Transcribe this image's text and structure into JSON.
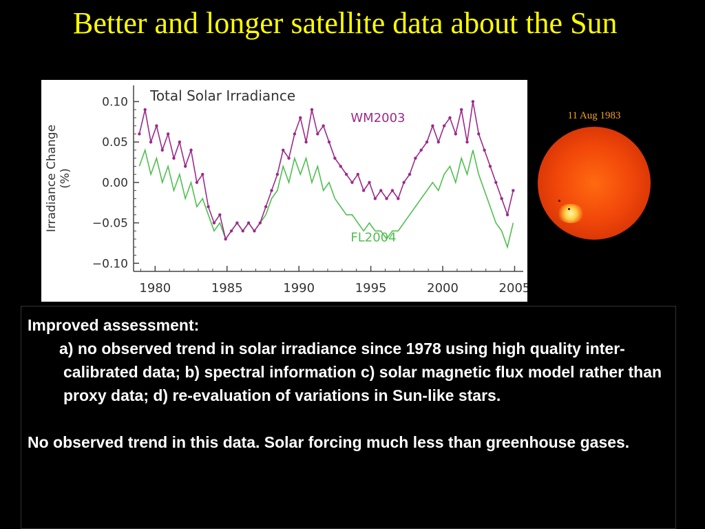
{
  "slide": {
    "title": "Better and longer satellite data about the Sun"
  },
  "colors": {
    "title": "#ffff00",
    "wm2003": "#9b2a8a",
    "fl2004": "#4fbf4f",
    "background": "#000000"
  },
  "sun_image": {
    "date_label": "11 Aug 1983"
  },
  "text_box": {
    "heading": "Improved assessment:",
    "item_a": "a) no observed trend in solar irradiance since 1978 using high quality inter-calibrated data; b) spectral information c) solar magnetic flux model rather than proxy data; d) re-evaluation of variations in Sun-like stars.",
    "conclusion": "No observed trend in this data.  Solar forcing much less than greenhouse gases."
  },
  "chart_data": {
    "type": "line",
    "title": "Total Solar Irradiance",
    "xlabel": "",
    "ylabel": "Irradiance Change (%)",
    "xlim": [
      1978.5,
      2005.6
    ],
    "ylim": [
      -0.11,
      0.12
    ],
    "x_ticks": [
      1980,
      1985,
      1990,
      1995,
      2000,
      2005
    ],
    "x_tick_labels": [
      "1980",
      "1985",
      "1990",
      "1995",
      "2000",
      "2005"
    ],
    "y_ticks": [
      -0.1,
      -0.05,
      0.0,
      0.05,
      0.1
    ],
    "y_tick_labels": [
      "−0.10",
      "−0.05",
      "0.00",
      "0.05",
      "0.10"
    ],
    "grid": false,
    "series": [
      {
        "name": "WM2003",
        "color": "#9b2a8a",
        "markers": true,
        "x": [
          1978.9,
          1979.3,
          1979.7,
          1980.1,
          1980.5,
          1980.9,
          1981.3,
          1981.7,
          1982.1,
          1982.5,
          1982.9,
          1983.3,
          1983.7,
          1984.1,
          1984.5,
          1984.9,
          1985.3,
          1985.7,
          1986.1,
          1986.5,
          1986.9,
          1987.3,
          1987.7,
          1988.1,
          1988.5,
          1988.9,
          1989.3,
          1989.7,
          1990.1,
          1990.5,
          1990.9,
          1991.3,
          1991.7,
          1992.1,
          1992.5,
          1992.9,
          1993.3,
          1993.7,
          1994.1,
          1994.5,
          1994.9,
          1995.3,
          1995.7,
          1996.1,
          1996.5,
          1996.9,
          1997.3,
          1997.7,
          1998.1,
          1998.5,
          1998.9,
          1999.3,
          1999.7,
          2000.1,
          2000.5,
          2000.9,
          2001.3,
          2001.7,
          2002.1,
          2002.5,
          2002.9,
          2003.3,
          2003.7,
          2004.1,
          2004.5,
          2004.9
        ],
        "y": [
          0.06,
          0.09,
          0.05,
          0.07,
          0.04,
          0.06,
          0.03,
          0.05,
          0.02,
          0.04,
          0.0,
          0.01,
          -0.03,
          -0.05,
          -0.04,
          -0.07,
          -0.06,
          -0.05,
          -0.06,
          -0.05,
          -0.06,
          -0.05,
          -0.03,
          -0.01,
          0.01,
          0.04,
          0.03,
          0.06,
          0.08,
          0.05,
          0.09,
          0.06,
          0.07,
          0.05,
          0.03,
          0.02,
          0.01,
          0.0,
          0.01,
          -0.01,
          0.0,
          -0.02,
          -0.01,
          -0.02,
          -0.01,
          -0.02,
          0.0,
          0.01,
          0.03,
          0.04,
          0.05,
          0.07,
          0.05,
          0.07,
          0.08,
          0.06,
          0.09,
          0.05,
          0.1,
          0.06,
          0.04,
          0.02,
          0.0,
          -0.02,
          -0.04,
          -0.01
        ]
      },
      {
        "name": "FL2004",
        "color": "#4fbf4f",
        "markers": false,
        "x": [
          1978.9,
          1979.3,
          1979.7,
          1980.1,
          1980.5,
          1980.9,
          1981.3,
          1981.7,
          1982.1,
          1982.5,
          1982.9,
          1983.3,
          1983.7,
          1984.1,
          1984.5,
          1984.9,
          1985.3,
          1985.7,
          1986.1,
          1986.5,
          1986.9,
          1987.3,
          1987.7,
          1988.1,
          1988.5,
          1988.9,
          1989.3,
          1989.7,
          1990.1,
          1990.5,
          1990.9,
          1991.3,
          1991.7,
          1992.1,
          1992.5,
          1992.9,
          1993.3,
          1993.7,
          1994.1,
          1994.5,
          1994.9,
          1995.3,
          1995.7,
          1996.1,
          1996.5,
          1996.9,
          1997.3,
          1997.7,
          1998.1,
          1998.5,
          1998.9,
          1999.3,
          1999.7,
          2000.1,
          2000.5,
          2000.9,
          2001.3,
          2001.7,
          2002.1,
          2002.5,
          2002.9,
          2003.3,
          2003.7,
          2004.1,
          2004.5,
          2004.9
        ],
        "y": [
          0.02,
          0.04,
          0.01,
          0.03,
          0.0,
          0.02,
          -0.01,
          0.01,
          -0.02,
          0.0,
          -0.03,
          -0.02,
          -0.04,
          -0.06,
          -0.05,
          -0.07,
          -0.06,
          -0.05,
          -0.06,
          -0.05,
          -0.06,
          -0.05,
          -0.04,
          -0.02,
          -0.01,
          0.02,
          0.0,
          0.03,
          0.01,
          0.03,
          0.0,
          0.02,
          -0.01,
          0.0,
          -0.02,
          -0.03,
          -0.04,
          -0.04,
          -0.05,
          -0.06,
          -0.05,
          -0.06,
          -0.06,
          -0.07,
          -0.06,
          -0.06,
          -0.05,
          -0.04,
          -0.03,
          -0.02,
          -0.01,
          0.0,
          -0.01,
          0.01,
          0.02,
          0.0,
          0.03,
          0.01,
          0.04,
          0.01,
          -0.01,
          -0.03,
          -0.05,
          -0.06,
          -0.08,
          -0.05
        ]
      }
    ],
    "annotations": [
      {
        "text": "WM2003",
        "x": 1993.6,
        "y": 0.075,
        "color": "#9b2a8a"
      },
      {
        "text": "FL2004",
        "x": 1993.6,
        "y": -0.073,
        "color": "#4fbf4f"
      }
    ]
  }
}
